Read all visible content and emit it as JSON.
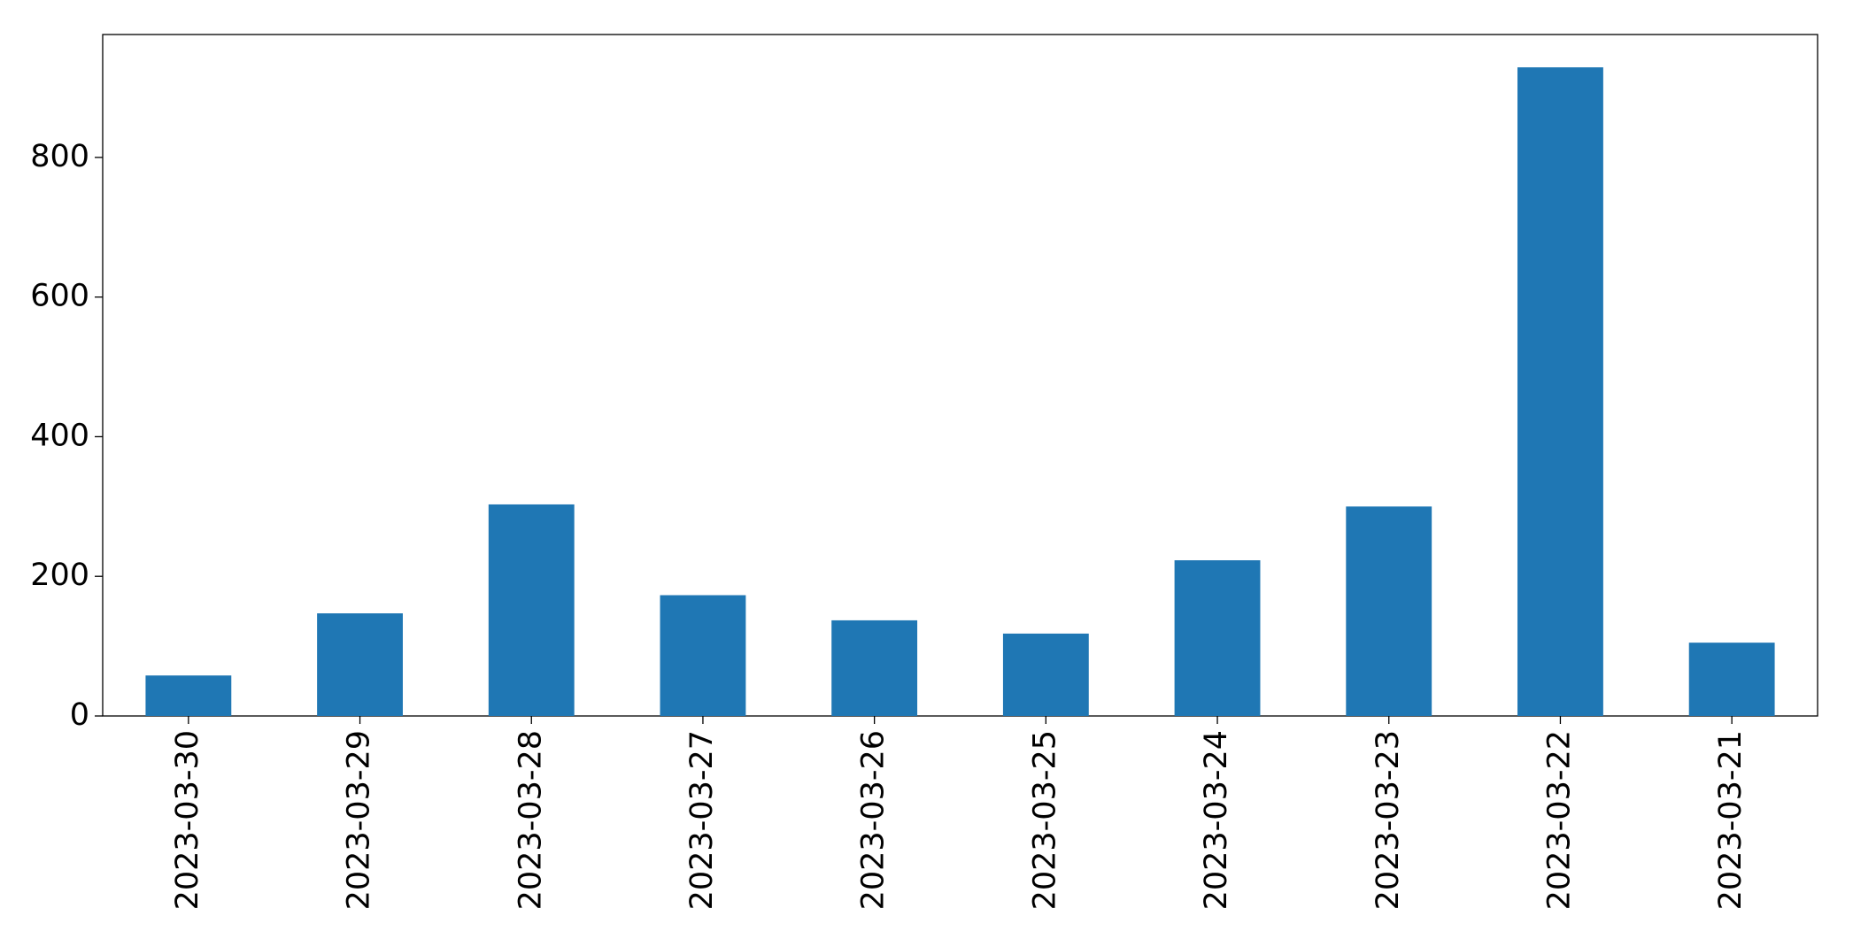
{
  "chart_data": {
    "type": "bar",
    "categories": [
      "2023-03-30",
      "2023-03-29",
      "2023-03-28",
      "2023-03-27",
      "2023-03-26",
      "2023-03-25",
      "2023-03-24",
      "2023-03-23",
      "2023-03-22",
      "2023-03-21"
    ],
    "values": [
      58,
      147,
      303,
      173,
      137,
      118,
      223,
      300,
      929,
      105
    ],
    "color": "#1f77b4",
    "ylim": [
      0,
      976
    ],
    "yticks": [
      0,
      200,
      400,
      600,
      800
    ],
    "grid": false
  }
}
